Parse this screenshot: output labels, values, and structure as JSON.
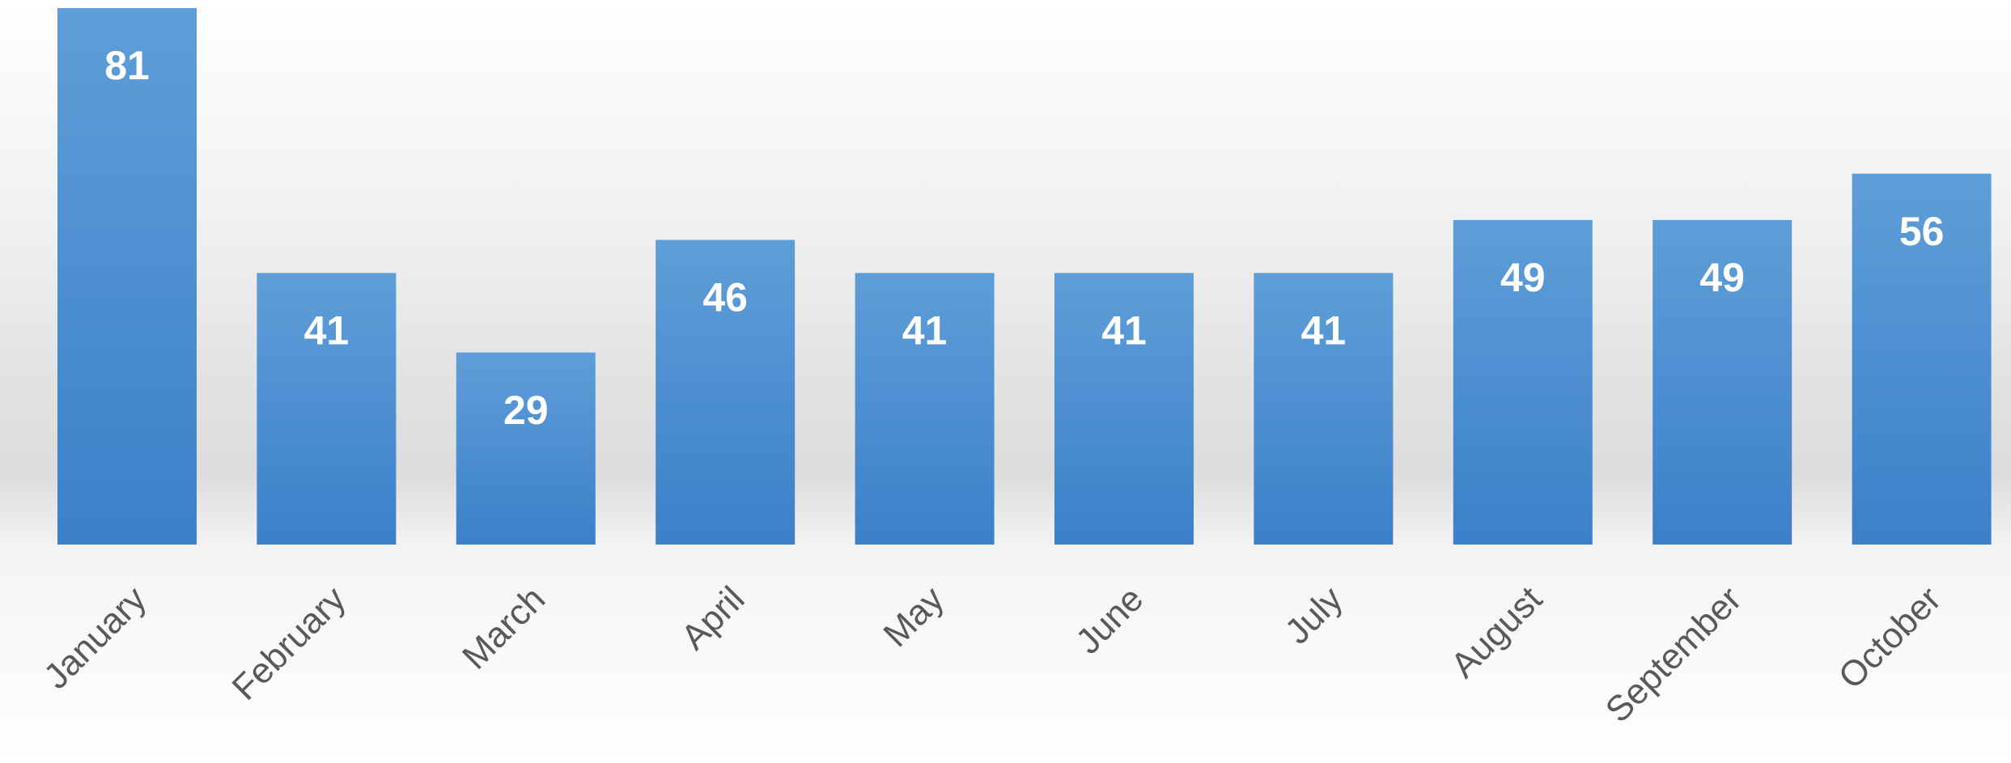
{
  "chart_data": {
    "type": "bar",
    "categories": [
      "January",
      "February",
      "March",
      "April",
      "May",
      "June",
      "July",
      "August",
      "September",
      "October"
    ],
    "values": [
      81,
      41,
      29,
      46,
      41,
      41,
      41,
      49,
      49,
      56
    ],
    "color": "#4a8fd4",
    "grid": false
  }
}
